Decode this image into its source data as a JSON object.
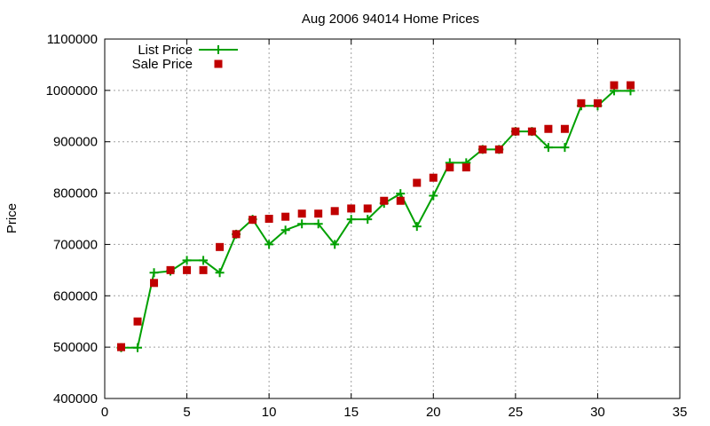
{
  "chart_data": {
    "type": "line",
    "title": "Aug 2006 94014 Home Prices",
    "xlabel": "",
    "ylabel": "Price",
    "xlim": [
      0,
      35
    ],
    "ylim": [
      400000,
      1100000
    ],
    "xticks": [
      0,
      5,
      10,
      15,
      20,
      25,
      30,
      35
    ],
    "yticks": [
      400000,
      500000,
      600000,
      700000,
      800000,
      900000,
      1000000,
      1100000
    ],
    "grid": true,
    "legend_position": "top-left",
    "series": [
      {
        "name": "List Price",
        "style": "line-with-plus-markers",
        "color": "#00a000",
        "x": [
          1,
          2,
          3,
          4,
          5,
          6,
          7,
          8,
          9,
          10,
          11,
          12,
          13,
          14,
          15,
          16,
          17,
          18,
          19,
          20,
          21,
          22,
          23,
          24,
          25,
          26,
          27,
          28,
          29,
          30,
          31,
          32
        ],
        "values": [
          499000,
          499000,
          645000,
          648000,
          669000,
          669000,
          645000,
          720000,
          749000,
          700000,
          728000,
          740000,
          740000,
          700000,
          749000,
          749000,
          780000,
          799000,
          735000,
          795000,
          859000,
          859000,
          885000,
          885000,
          920000,
          920000,
          889000,
          889000,
          970000,
          970000,
          999000,
          999000
        ]
      },
      {
        "name": "Sale Price",
        "style": "square-markers",
        "color": "#c00000",
        "x": [
          1,
          2,
          3,
          4,
          5,
          6,
          7,
          8,
          9,
          10,
          11,
          12,
          13,
          14,
          15,
          16,
          17,
          18,
          19,
          20,
          21,
          22,
          23,
          24,
          25,
          26,
          27,
          28,
          29,
          30,
          31,
          32
        ],
        "values": [
          500000,
          550000,
          625000,
          650000,
          650000,
          650000,
          695000,
          720000,
          748000,
          750000,
          754000,
          760000,
          760000,
          765000,
          770000,
          770000,
          785000,
          785000,
          820000,
          830000,
          850000,
          850000,
          885000,
          885000,
          920000,
          920000,
          925000,
          925000,
          975000,
          975000,
          1010000,
          1010000
        ]
      }
    ]
  }
}
